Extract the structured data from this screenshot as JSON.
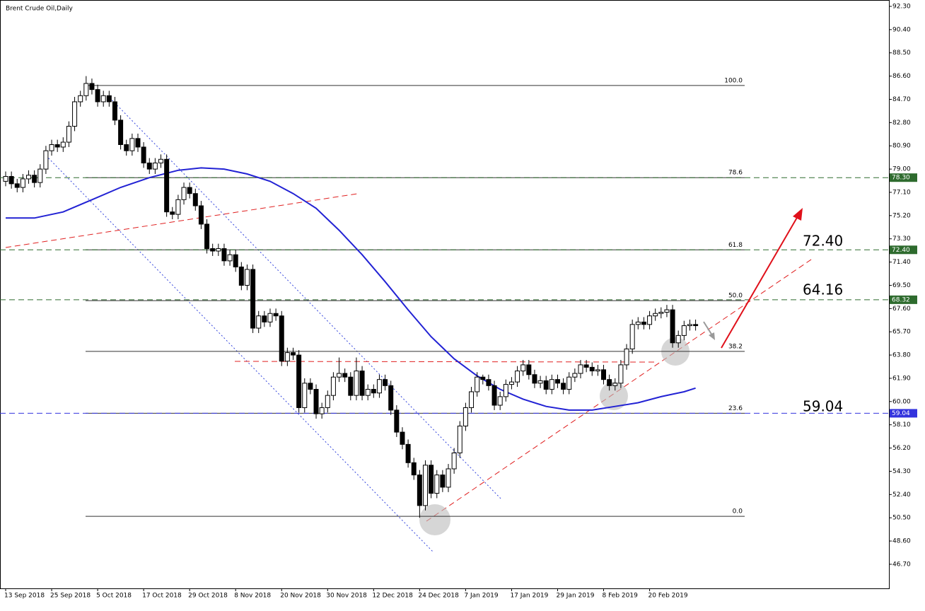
{
  "chart_data": {
    "type": "candlestick",
    "title": "Brent Crude Oil,Daily",
    "categories": [
      "13 Sep 2018",
      null,
      null,
      null,
      null,
      null,
      null,
      null,
      "25 Sep 2018",
      null,
      null,
      null,
      null,
      null,
      null,
      null,
      "5 Oct 2018",
      null,
      null,
      null,
      null,
      null,
      null,
      null,
      "17 Oct 2018",
      null,
      null,
      null,
      null,
      null,
      null,
      null,
      "29 Oct 2018",
      null,
      null,
      null,
      null,
      null,
      null,
      null,
      "8 Nov 2018",
      null,
      null,
      null,
      null,
      null,
      null,
      null,
      "20 Nov 2018",
      null,
      null,
      null,
      null,
      null,
      null,
      null,
      "30 Nov 2018",
      null,
      null,
      null,
      null,
      null,
      null,
      null,
      "12 Dec 2018",
      null,
      null,
      null,
      null,
      null,
      null,
      null,
      "24 Dec 2018",
      null,
      null,
      null,
      null,
      null,
      null,
      null,
      "7 Jan 2019",
      null,
      null,
      null,
      null,
      null,
      null,
      null,
      "17 Jan 2019",
      null,
      null,
      null,
      null,
      null,
      null,
      null,
      "29 Jan 2019",
      null,
      null,
      null,
      null,
      null,
      null,
      null,
      "8 Feb 2019",
      null,
      null,
      null,
      null,
      null,
      null,
      null,
      "20 Feb 2019",
      null,
      null,
      null,
      null,
      null,
      null,
      null,
      null
    ],
    "open": [
      78.0,
      78.4,
      77.8,
      77.5,
      78.2,
      78.5,
      77.9,
      79.0,
      80.5,
      81.0,
      80.8,
      81.2,
      82.5,
      84.5,
      85.0,
      86.0,
      85.5,
      84.5,
      85.0,
      84.5,
      83.0,
      81.0,
      80.5,
      81.5,
      80.8,
      79.5,
      79.0,
      79.5,
      79.8,
      75.5,
      75.3,
      76.5,
      77.5,
      77.0,
      76.0,
      74.5,
      72.5,
      72.3,
      72.5,
      71.5,
      72.0,
      71.0,
      69.5,
      70.8,
      66.0,
      67.0,
      66.5,
      67.2,
      67.0,
      63.3,
      64.0,
      63.8,
      59.5,
      61.5,
      61.0,
      59.0,
      59.5,
      60.5,
      62.0,
      62.3,
      62.0,
      60.5,
      62.5,
      60.5,
      61.0,
      60.7,
      61.8,
      61.3,
      59.3,
      57.5,
      56.5,
      55.0,
      54.0,
      51.5,
      54.8,
      52.5,
      54.0,
      53.0,
      54.5,
      55.8,
      58.0,
      59.5,
      60.8,
      62.0,
      61.8,
      61.3,
      59.7,
      60.4,
      61.4,
      61.6,
      62.5,
      63.0,
      62.2,
      61.5,
      61.7,
      61.0,
      61.8,
      61.5,
      61.0,
      62.0,
      62.3,
      63.0,
      62.8,
      62.5,
      62.6,
      61.8,
      61.3,
      61.5,
      63.0,
      64.3,
      66.3,
      66.5,
      66.3,
      67.0,
      67.2,
      67.3,
      67.5,
      64.8,
      65.4,
      66.2,
      66.3
    ],
    "high": [
      78.8,
      78.8,
      78.2,
      78.6,
      78.9,
      78.9,
      79.4,
      80.9,
      81.4,
      81.4,
      81.6,
      82.9,
      84.9,
      85.4,
      86.6,
      86.4,
      85.9,
      85.4,
      85.4,
      84.9,
      83.4,
      81.4,
      81.9,
      81.9,
      81.2,
      79.9,
      79.9,
      80.2,
      80.2,
      75.9,
      76.9,
      77.9,
      77.9,
      77.4,
      76.4,
      74.9,
      72.9,
      72.9,
      72.9,
      72.4,
      72.4,
      71.4,
      71.2,
      71.2,
      67.4,
      67.4,
      67.6,
      67.6,
      67.4,
      64.4,
      64.4,
      64.2,
      61.9,
      61.9,
      61.4,
      59.9,
      60.9,
      62.4,
      63.6,
      62.7,
      62.4,
      63.6,
      62.9,
      61.4,
      61.4,
      62.2,
      62.2,
      61.7,
      59.7,
      57.9,
      56.9,
      55.4,
      54.4,
      55.2,
      55.2,
      54.4,
      54.4,
      54.9,
      56.2,
      58.4,
      59.9,
      61.2,
      62.4,
      62.2,
      62.2,
      61.7,
      60.8,
      61.8,
      62.0,
      62.9,
      63.4,
      63.4,
      62.6,
      62.1,
      62.1,
      62.2,
      62.2,
      61.9,
      62.4,
      62.7,
      63.4,
      63.4,
      63.2,
      63.0,
      63.0,
      62.2,
      61.9,
      63.4,
      64.7,
      66.7,
      66.9,
      66.9,
      67.4,
      67.6,
      67.7,
      67.9,
      67.9,
      65.8,
      66.6,
      66.7,
      66.7
    ],
    "low": [
      77.6,
      77.4,
      77.1,
      77.1,
      77.8,
      77.5,
      77.5,
      78.6,
      80.1,
      80.4,
      80.4,
      80.8,
      82.1,
      84.1,
      84.6,
      85.1,
      84.1,
      84.1,
      84.1,
      82.6,
      80.6,
      80.1,
      80.1,
      80.4,
      79.1,
      78.6,
      78.6,
      79.1,
      75.1,
      74.9,
      74.9,
      76.1,
      76.6,
      75.6,
      74.1,
      72.1,
      71.9,
      71.9,
      71.1,
      71.1,
      70.6,
      69.1,
      69.1,
      65.6,
      65.6,
      66.1,
      66.1,
      66.6,
      62.9,
      62.9,
      63.4,
      59.1,
      59.1,
      60.6,
      58.6,
      58.6,
      59.1,
      60.1,
      61.6,
      61.6,
      60.1,
      60.1,
      60.1,
      60.1,
      60.3,
      60.3,
      60.9,
      58.9,
      57.1,
      56.1,
      54.6,
      53.6,
      50.5,
      51.1,
      52.1,
      52.1,
      52.6,
      52.6,
      54.1,
      55.4,
      57.6,
      59.1,
      60.4,
      61.4,
      60.9,
      59.3,
      59.3,
      60.0,
      61.0,
      61.2,
      62.1,
      61.8,
      61.1,
      61.1,
      60.6,
      60.6,
      61.1,
      60.6,
      60.6,
      61.6,
      61.9,
      62.4,
      62.1,
      62.1,
      61.4,
      60.9,
      60.9,
      61.1,
      62.6,
      63.9,
      65.9,
      65.9,
      65.9,
      66.6,
      66.8,
      66.9,
      64.4,
      64.4,
      65.0,
      65.8,
      65.8
    ],
    "close": [
      78.4,
      77.8,
      77.5,
      78.2,
      78.5,
      77.9,
      79.0,
      80.5,
      81.0,
      80.8,
      81.2,
      82.5,
      84.5,
      85.0,
      86.0,
      85.5,
      84.5,
      85.0,
      84.5,
      83.0,
      81.0,
      80.5,
      81.5,
      80.8,
      79.5,
      79.0,
      79.5,
      79.8,
      75.5,
      75.3,
      76.5,
      77.5,
      77.0,
      76.0,
      74.5,
      72.5,
      72.3,
      72.5,
      71.5,
      72.0,
      71.0,
      69.5,
      70.8,
      66.0,
      67.0,
      66.5,
      67.2,
      67.0,
      63.3,
      64.0,
      63.8,
      59.5,
      61.5,
      61.0,
      59.0,
      59.5,
      60.5,
      62.0,
      62.3,
      62.0,
      60.5,
      62.5,
      60.5,
      61.0,
      60.7,
      61.8,
      61.3,
      59.3,
      57.5,
      56.5,
      55.0,
      54.0,
      51.5,
      54.8,
      52.5,
      54.0,
      53.0,
      54.5,
      55.8,
      58.0,
      59.5,
      60.8,
      62.0,
      61.8,
      61.3,
      59.7,
      60.4,
      61.4,
      61.6,
      62.5,
      63.0,
      62.2,
      61.5,
      61.7,
      61.0,
      61.8,
      61.5,
      61.0,
      62.0,
      62.3,
      63.0,
      62.8,
      62.5,
      62.6,
      61.8,
      61.3,
      61.5,
      63.0,
      64.3,
      66.3,
      66.5,
      66.3,
      67.0,
      67.2,
      67.3,
      67.5,
      64.8,
      65.4,
      66.2,
      66.3,
      66.2
    ],
    "up_color": "#ffffff",
    "down_color": "#000000",
    "moving_average": {
      "color": "#2222d4",
      "x": [
        0,
        5,
        10,
        15,
        20,
        25,
        30,
        34,
        38,
        42,
        46,
        50,
        54,
        58,
        62,
        66,
        70,
        74,
        78,
        82,
        86,
        90,
        94,
        98,
        102,
        106,
        110,
        114,
        116,
        118,
        120
      ],
      "values": [
        75.0,
        75.0,
        75.5,
        76.5,
        77.5,
        78.3,
        78.9,
        79.1,
        79.0,
        78.6,
        78.0,
        77.0,
        75.8,
        74.0,
        72.0,
        69.8,
        67.5,
        65.3,
        63.5,
        62.1,
        61.0,
        60.2,
        59.6,
        59.3,
        59.3,
        59.6,
        59.9,
        60.4,
        60.6,
        60.8,
        61.1
      ]
    },
    "ylim": [
      44.73,
      92.82
    ],
    "yticks": [
      {
        "value": 92.3,
        "label": "92.30"
      },
      {
        "value": 90.4,
        "label": "90.40"
      },
      {
        "value": 88.5,
        "label": "88.50"
      },
      {
        "value": 86.6,
        "label": "86.60"
      },
      {
        "value": 84.7,
        "label": "84.70"
      },
      {
        "value": 82.8,
        "label": "82.80"
      },
      {
        "value": 80.9,
        "label": "80.90"
      },
      {
        "value": 79,
        "label": "79.00"
      },
      {
        "value": 77.1,
        "label": "77.10"
      },
      {
        "value": 75.2,
        "label": "75.20"
      },
      {
        "value": 73.3,
        "label": "73.30"
      },
      {
        "value": 71.4,
        "label": "71.40"
      },
      {
        "value": 69.5,
        "label": "69.50"
      },
      {
        "value": 67.6,
        "label": "67.60"
      },
      {
        "value": 65.7,
        "label": "65.70"
      },
      {
        "value": 63.8,
        "label": "63.80"
      },
      {
        "value": 61.9,
        "label": "61.90"
      },
      {
        "value": 60,
        "label": "60.00"
      },
      {
        "value": 58.1,
        "label": "58.10"
      },
      {
        "value": 56.2,
        "label": "56.20"
      },
      {
        "value": 54.3,
        "label": "54.30"
      },
      {
        "value": 52.4,
        "label": "52.40"
      },
      {
        "value": 50.5,
        "label": "50.50"
      },
      {
        "value": 48.6,
        "label": "48.60"
      },
      {
        "value": 46.7,
        "label": "46.70"
      }
    ],
    "fib_levels": [
      {
        "value": 100,
        "label": "100.0",
        "price": 85.83
      },
      {
        "value": 78.6,
        "label": "78.6",
        "price": 78.3
      },
      {
        "value": 61.8,
        "label": "61.8",
        "price": 72.4
      },
      {
        "value": 50,
        "label": "50.0",
        "price": 68.25
      },
      {
        "value": 38.2,
        "label": "38.2",
        "price": 64.1
      },
      {
        "value": 23.6,
        "label": "23.6",
        "price": 59.04
      },
      {
        "value": 0,
        "label": "0.0",
        "price": 50.62
      }
    ],
    "price_lines": [
      {
        "value": 78.3,
        "label": "78.30",
        "color": "#2e6b2e"
      },
      {
        "value": 72.4,
        "label": "72.40",
        "color": "#2e6b2e"
      },
      {
        "value": 68.32,
        "label": "68.32",
        "color": "#2e6b2e"
      },
      {
        "value": 59.04,
        "label": "59.04",
        "color": "#3333dd"
      }
    ],
    "annotations": [
      "72.40",
      "64.16",
      "59.04"
    ]
  }
}
